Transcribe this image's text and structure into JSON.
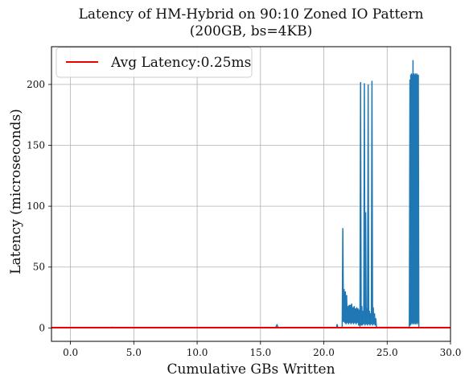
{
  "chart_data": {
    "type": "line",
    "title": "Latency of HM-Hybrid on 90:10 Zoned IO Pattern",
    "subtitle": "(200GB, bs=4KB)",
    "xlabel": "Cumulative GBs Written",
    "ylabel": "Latency (microseconds)",
    "xlim": [
      -1.5,
      30.0
    ],
    "ylim": [
      -11,
      231
    ],
    "x_ticks": [
      {
        "value": 0.0,
        "label": "0.0"
      },
      {
        "value": 5.0,
        "label": "5.0"
      },
      {
        "value": 10.0,
        "label": "10.0"
      },
      {
        "value": 15.0,
        "label": "15.0"
      },
      {
        "value": 20.0,
        "label": "20.0"
      },
      {
        "value": 25.0,
        "label": "25.0"
      },
      {
        "value": 30.0,
        "label": "30.0",
        "color": "#ff0000"
      }
    ],
    "y_ticks": [
      {
        "value": 0,
        "label": "0"
      },
      {
        "value": 50,
        "label": "50"
      },
      {
        "value": 100,
        "label": "100"
      },
      {
        "value": 150,
        "label": "150"
      },
      {
        "value": 200,
        "label": "200"
      }
    ],
    "grid": true,
    "legend_position": "top-left",
    "series": [
      {
        "name": "",
        "color": "#1f77b4",
        "points": [
          [
            0.0,
            0.3
          ],
          [
            3.2,
            0.4
          ],
          [
            3.3,
            0.6
          ],
          [
            3.4,
            0.3
          ],
          [
            16.2,
            0.4
          ],
          [
            16.3,
            2.5
          ],
          [
            16.4,
            0.4
          ],
          [
            21.0,
            0.4
          ],
          [
            21.05,
            3.0
          ],
          [
            21.1,
            0.4
          ],
          [
            21.45,
            0.4
          ],
          [
            21.5,
            82
          ],
          [
            21.55,
            5
          ],
          [
            21.6,
            32
          ],
          [
            21.65,
            4
          ],
          [
            21.7,
            30
          ],
          [
            21.75,
            3
          ],
          [
            21.8,
            27
          ],
          [
            21.85,
            4
          ],
          [
            21.9,
            18
          ],
          [
            21.95,
            3
          ],
          [
            22.0,
            19
          ],
          [
            22.05,
            4
          ],
          [
            22.1,
            19
          ],
          [
            22.15,
            3
          ],
          [
            22.2,
            20
          ],
          [
            22.25,
            4
          ],
          [
            22.3,
            17
          ],
          [
            22.35,
            3
          ],
          [
            22.4,
            18
          ],
          [
            22.45,
            4
          ],
          [
            22.5,
            16
          ],
          [
            22.55,
            3
          ],
          [
            22.6,
            17
          ],
          [
            22.65,
            4
          ],
          [
            22.7,
            16
          ],
          [
            22.75,
            2
          ],
          [
            22.8,
            15
          ],
          [
            22.85,
            1
          ],
          [
            22.9,
            202
          ],
          [
            22.95,
            2
          ],
          [
            23.0,
            18
          ],
          [
            23.05,
            2
          ],
          [
            23.1,
            14
          ],
          [
            23.15,
            3
          ],
          [
            23.2,
            201
          ],
          [
            23.25,
            2
          ],
          [
            23.3,
            95
          ],
          [
            23.35,
            3
          ],
          [
            23.4,
            16
          ],
          [
            23.45,
            2
          ],
          [
            23.5,
            200
          ],
          [
            23.55,
            3
          ],
          [
            23.6,
            14
          ],
          [
            23.65,
            2
          ],
          [
            23.7,
            12
          ],
          [
            23.75,
            3
          ],
          [
            23.8,
            203
          ],
          [
            23.85,
            2
          ],
          [
            23.9,
            17
          ],
          [
            23.95,
            3
          ],
          [
            24.0,
            12
          ],
          [
            24.05,
            2
          ],
          [
            24.1,
            8
          ],
          [
            24.15,
            1
          ],
          [
            24.2,
            0.5
          ],
          [
            26.75,
            0.5
          ],
          [
            26.8,
            204
          ],
          [
            26.83,
            2
          ],
          [
            26.86,
            208
          ],
          [
            26.89,
            3
          ],
          [
            26.92,
            209
          ],
          [
            26.95,
            4
          ],
          [
            26.98,
            208
          ],
          [
            27.01,
            3
          ],
          [
            27.04,
            220
          ],
          [
            27.07,
            4
          ],
          [
            27.1,
            209
          ],
          [
            27.13,
            3
          ],
          [
            27.16,
            208
          ],
          [
            27.19,
            4
          ],
          [
            27.22,
            209
          ],
          [
            27.25,
            3
          ],
          [
            27.28,
            208
          ],
          [
            27.31,
            4
          ],
          [
            27.34,
            209
          ],
          [
            27.37,
            3
          ],
          [
            27.4,
            208
          ],
          [
            27.43,
            4
          ],
          [
            27.46,
            208
          ],
          [
            27.5,
            0.5
          ]
        ]
      },
      {
        "name": "Avg Latency:0.25ms",
        "type": "hline",
        "color": "#ee0000",
        "value": 0.25
      }
    ]
  }
}
